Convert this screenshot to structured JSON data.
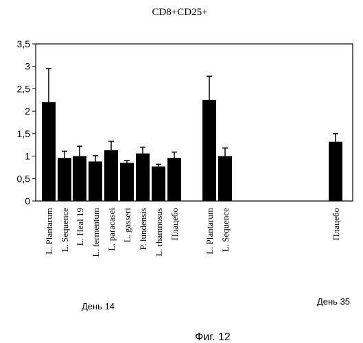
{
  "chart_data": {
    "type": "bar",
    "title": "CD8+CD25+",
    "categories": [
      "L. Plantarum",
      "L. Sequence",
      "L. Heal 19",
      "L. fermentum",
      "L. paracasei",
      "L. gasseri",
      "P. lundensis",
      "L. rhamnosus",
      "Плацебо",
      "L. Plantarum",
      "L. Sequence",
      "Плацебо"
    ],
    "values": [
      2.2,
      0.96,
      1.0,
      0.88,
      1.13,
      0.85,
      1.06,
      0.77,
      0.96,
      2.25,
      1.0,
      1.32
    ],
    "errors": [
      0.75,
      0.15,
      0.22,
      0.13,
      0.2,
      0.05,
      0.14,
      0.05,
      0.13,
      0.53,
      0.18,
      0.18
    ],
    "groups": [
      {
        "label": "День 14",
        "indices": [
          0,
          1,
          2,
          3,
          4,
          5,
          6,
          7,
          8
        ]
      },
      {
        "label": "День 35",
        "indices": [
          9,
          10,
          11
        ]
      }
    ],
    "ylim": [
      0,
      3.5
    ],
    "yticks": [
      "0",
      "0,5",
      "1",
      "1,5",
      "2",
      "2,5",
      "3",
      "3,5"
    ],
    "grid": false,
    "xlabel": "",
    "ylabel": "",
    "bar_color": "#000000"
  },
  "caption": "Фиг. 12"
}
